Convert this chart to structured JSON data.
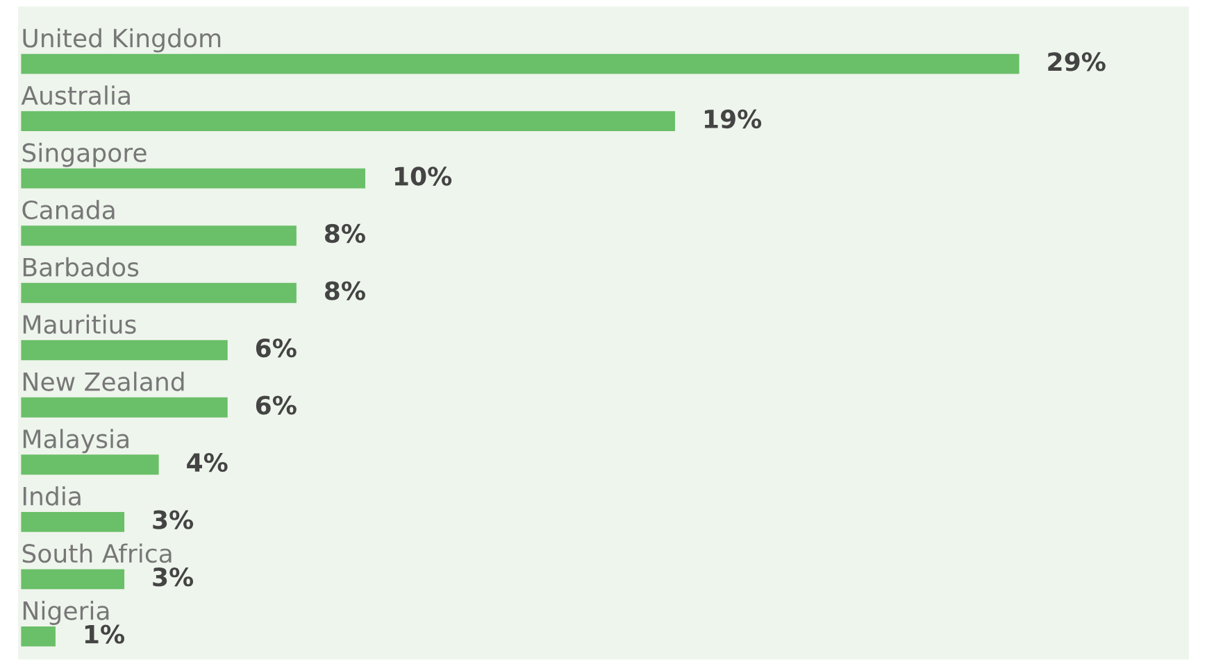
{
  "chart_data": {
    "type": "bar",
    "orientation": "horizontal",
    "categories": [
      "United Kingdom",
      "Australia",
      "Singapore",
      "Canada",
      "Barbados",
      "Mauritius",
      "New Zealand",
      "Malaysia",
      "India",
      "South Africa",
      "Nigeria"
    ],
    "values": [
      29,
      19,
      10,
      8,
      8,
      6,
      6,
      4,
      3,
      3,
      1
    ],
    "value_labels": [
      "29%",
      "19%",
      "10%",
      "8%",
      "8%",
      "6%",
      "6%",
      "4%",
      "3%",
      "3%",
      "1%"
    ],
    "color": "#6abf69"
  }
}
